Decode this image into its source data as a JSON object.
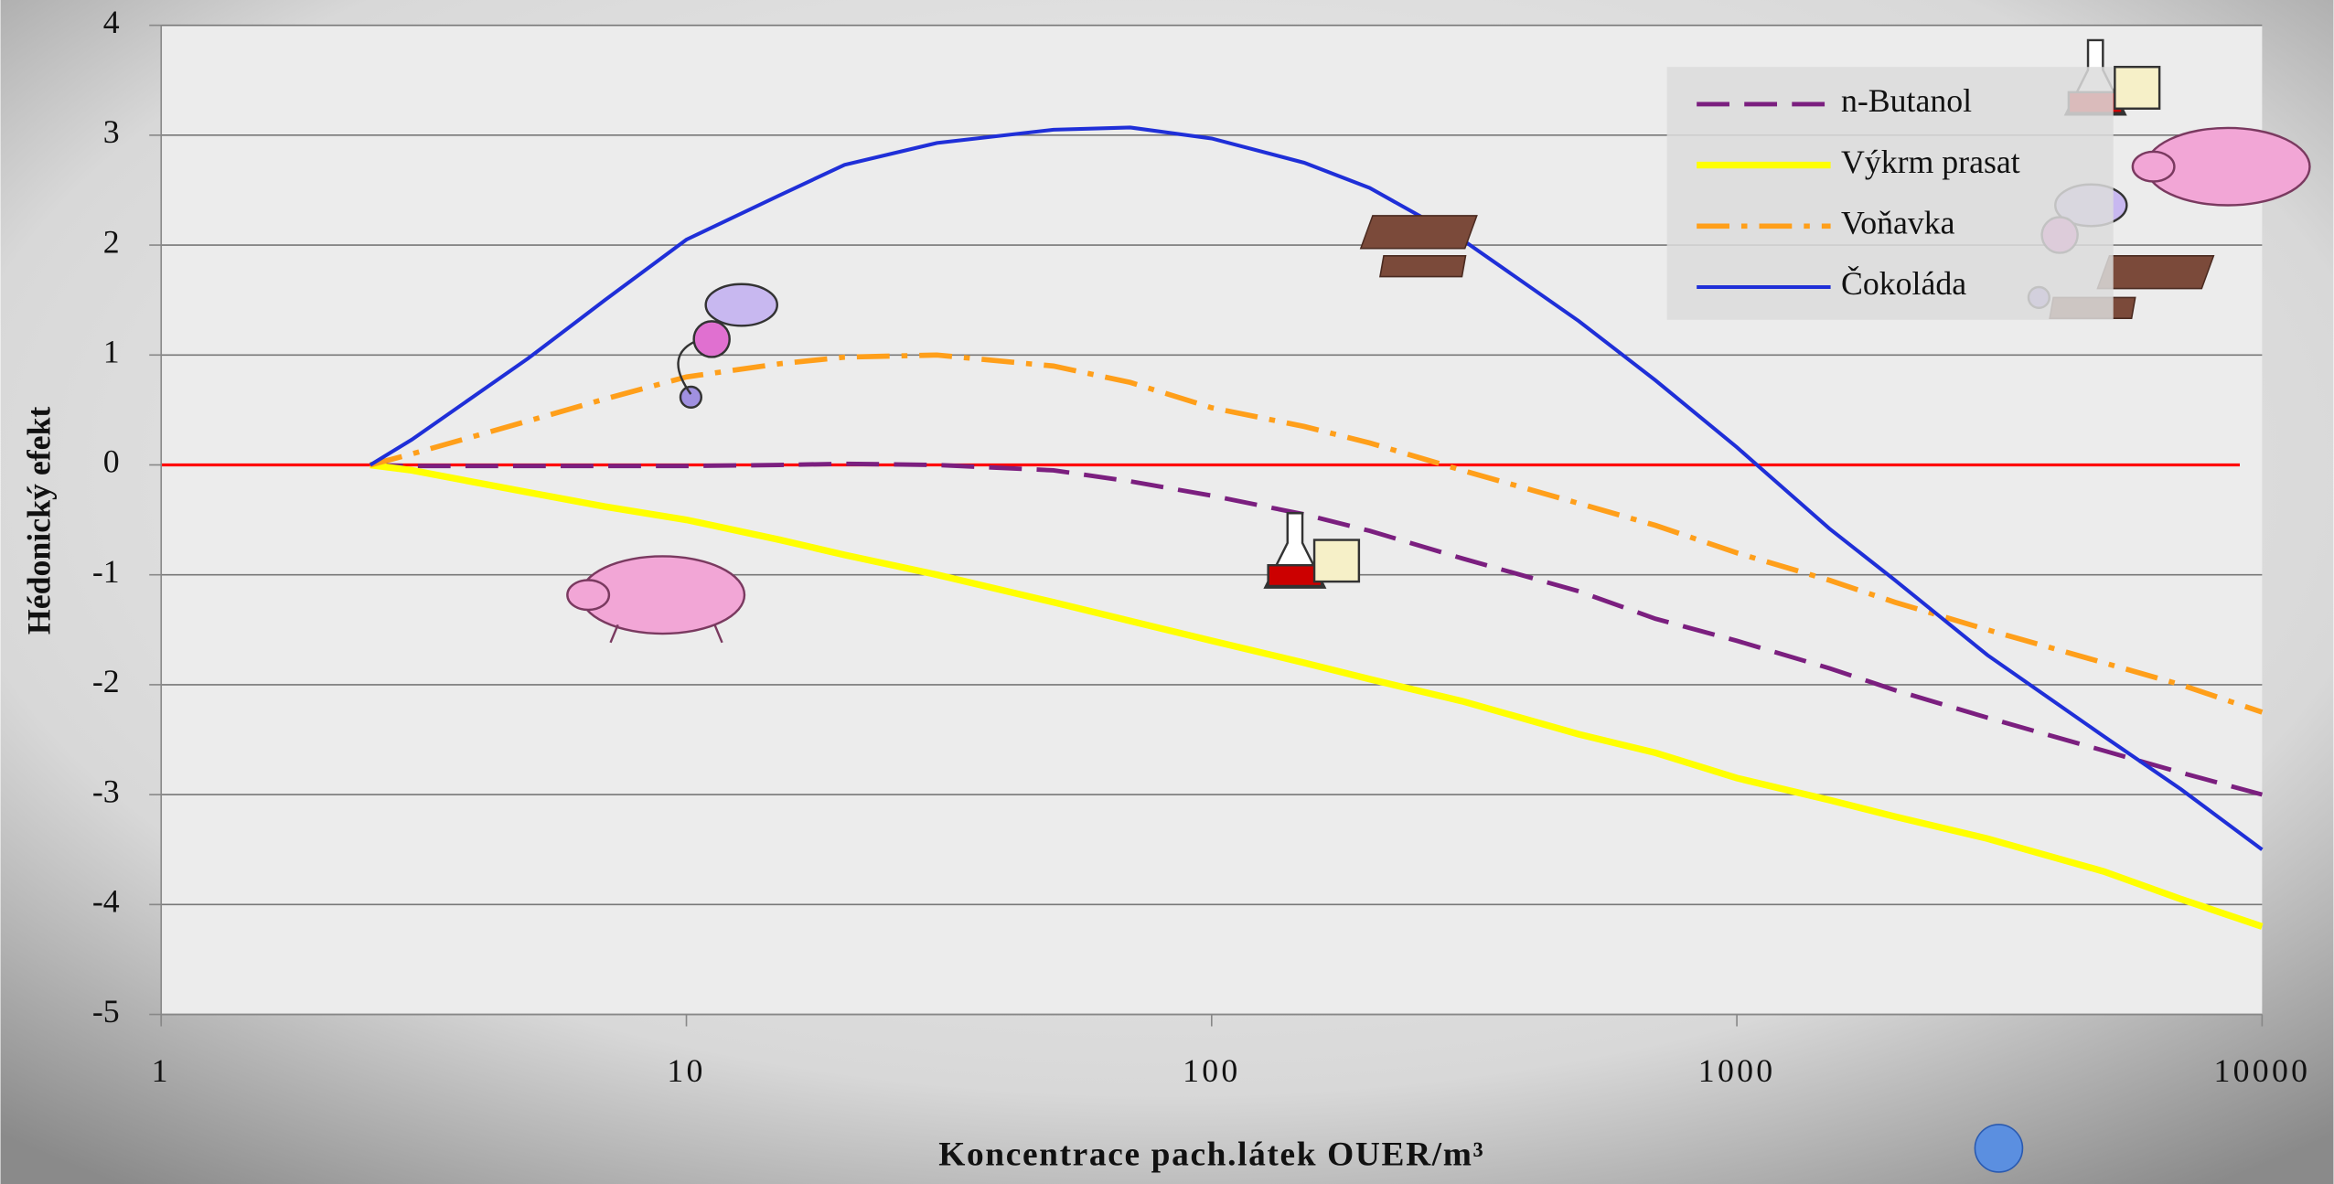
{
  "chart_data": {
    "type": "line",
    "x_label": "Koncentrace pach.látek  OUER/m³",
    "y_label": "Hédonický efekt",
    "log_x": true,
    "grid": true,
    "xlim": [
      1,
      10000
    ],
    "xticks": [
      1,
      10,
      100,
      1000,
      10000
    ],
    "ylim": [
      -5,
      4
    ],
    "yticks": [
      -5,
      -4,
      -3,
      -2,
      -1,
      0,
      1,
      2,
      3,
      4
    ],
    "x": [
      2.5,
      3,
      5,
      7,
      10,
      15,
      20,
      30,
      50,
      70,
      100,
      150,
      200,
      300,
      500,
      700,
      1000,
      1500,
      2000,
      3000,
      5000,
      7000,
      10000
    ],
    "series": [
      {
        "name": "n-Butanol",
        "color": "#7b1f7f",
        "line_style": "dashed",
        "values": [
          0,
          -0.01,
          -0.01,
          -0.01,
          -0.01,
          0,
          0.01,
          0,
          -0.05,
          -0.15,
          -0.28,
          -0.45,
          -0.6,
          -0.85,
          -1.15,
          -1.4,
          -1.6,
          -1.85,
          -2.05,
          -2.3,
          -2.6,
          -2.8,
          -3.0
        ]
      },
      {
        "name": "Výkrm prasat",
        "color": "#ffff00",
        "line_style": "solid",
        "values": [
          0,
          -0.05,
          -0.25,
          -0.38,
          -0.5,
          -0.68,
          -0.82,
          -1.0,
          -1.25,
          -1.42,
          -1.6,
          -1.8,
          -1.95,
          -2.15,
          -2.45,
          -2.62,
          -2.85,
          -3.05,
          -3.2,
          -3.4,
          -3.7,
          -3.95,
          -4.2
        ]
      },
      {
        "name": "Voňavka",
        "color": "#ff9f1a",
        "line_style": "dashdot",
        "values": [
          0,
          0.1,
          0.4,
          0.6,
          0.8,
          0.92,
          0.98,
          1.0,
          0.9,
          0.75,
          0.52,
          0.35,
          0.2,
          -0.05,
          -0.35,
          -0.55,
          -0.8,
          -1.05,
          -1.25,
          -1.5,
          -1.8,
          -2.0,
          -2.25
        ]
      },
      {
        "name": "Čokoláda",
        "color": "#1f2fd8",
        "line_style": "thin",
        "values": [
          0,
          0.23,
          0.97,
          1.5,
          2.05,
          2.45,
          2.73,
          2.93,
          3.05,
          3.07,
          2.97,
          2.75,
          2.52,
          2.05,
          1.31,
          0.77,
          0.16,
          -0.58,
          -1.05,
          -1.73,
          -2.47,
          -2.95,
          -3.5
        ]
      }
    ]
  }
}
